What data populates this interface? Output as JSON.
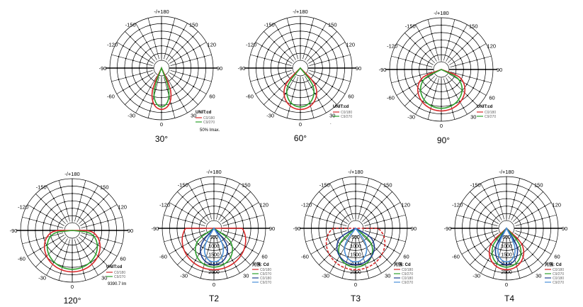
{
  "diagrams": [
    {
      "id": "d30",
      "caption": "30°",
      "angles": {
        "top": "-/+180",
        "m150": "-150",
        "p150": "150",
        "m120": "-120",
        "p120": "120",
        "m90": "-90",
        "p90": "90",
        "m60": "-60",
        "p60": "60",
        "m30": "-30",
        "p30": "30",
        "zero": "0"
      },
      "unit": "UNIT:cd",
      "legend": [
        {
          "label": "C0/180",
          "color": "#d62728"
        },
        {
          "label": "C9/270",
          "color": "#2ca02c"
        }
      ],
      "note": "50% Imax.",
      "curves": [
        {
          "color": "#d62728",
          "half_width_deg": 18,
          "dash": false
        },
        {
          "color": "#2ca02c",
          "half_width_deg": 15,
          "dash": false
        }
      ]
    },
    {
      "id": "d60",
      "caption": "60°",
      "angles": {
        "top": "-/+180",
        "m150": "-150",
        "p150": "150",
        "m120": "-120",
        "p120": "120",
        "m90": "-90",
        "p90": "90",
        "m60": "-60",
        "p60": "60",
        "m30": "-30",
        "p30": "30",
        "zero": "0"
      },
      "unit": "UNIT:cd",
      "legend": [
        {
          "label": "C0/180",
          "color": "#d62728"
        },
        {
          "label": "C9/270",
          "color": "#2ca02c"
        }
      ],
      "note": ".",
      "curves": [
        {
          "color": "#d62728",
          "half_width_deg": 32,
          "dash": false
        },
        {
          "color": "#2ca02c",
          "half_width_deg": 28,
          "dash": false
        }
      ]
    },
    {
      "id": "d90",
      "caption": "90°",
      "angles": {
        "top": "-/+180",
        "m150": "-150",
        "p150": "150",
        "m120": "-120",
        "p120": "120",
        "m90": "-90",
        "p90": "90",
        "m60": "-60",
        "p60": "60",
        "m30": "-30",
        "p30": "30",
        "zero": "0"
      },
      "unit": "UNIT:cd",
      "legend": [
        {
          "label": "C0/180",
          "color": "#d62728"
        },
        {
          "label": "C9/270",
          "color": "#2ca02c"
        }
      ],
      "note": "",
      "curves": [
        {
          "color": "#d62728",
          "half_width_deg": 50,
          "dash": false
        },
        {
          "color": "#2ca02c",
          "half_width_deg": 46,
          "dash": false
        }
      ]
    },
    {
      "id": "d120",
      "caption": "120°",
      "angles": {
        "top": "-/+180",
        "m150": "-150",
        "p150": "150",
        "m120": "-120",
        "p120": "120",
        "m90": "-90",
        "p90": "90",
        "m60": "-60",
        "p60": "60",
        "m30": "-30",
        "p30": "30",
        "zero": "0"
      },
      "unit": "UNIT:cd",
      "legend": [
        {
          "label": "C0/180",
          "color": "#d62728"
        },
        {
          "label": "C9/270",
          "color": "#2ca02c"
        }
      ],
      "note": "9390.7 lm",
      "curves": [
        {
          "color": "#d62728",
          "half_width_deg": 64,
          "dash": false
        },
        {
          "color": "#2ca02c",
          "half_width_deg": 60,
          "dash": false
        }
      ]
    },
    {
      "id": "dT2",
      "caption": "T2",
      "angles": {
        "top": "-/+180",
        "m150": "-150",
        "p150": "150",
        "m120": "-120",
        "p120": "120",
        "m90": "-90",
        "p90": "90",
        "m60": "-60",
        "p60": "60",
        "m30": "-30",
        "p30": "30",
        "zero": "0"
      },
      "unit": "光强: Cd",
      "radial": [
        "500",
        "1000",
        "1500",
        "2000",
        "2500"
      ],
      "legend": [
        {
          "label": "C0/180",
          "color": "#d62728"
        },
        {
          "label": "C9/270",
          "color": "#2ca02c"
        },
        {
          "label": "C0/180",
          "color": "#1f3f8f"
        },
        {
          "label": "C9/270",
          "color": "#4a90d9"
        }
      ],
      "note": "",
      "curves": [
        {
          "color": "#d62728",
          "half_width_deg": 82,
          "dash": false
        },
        {
          "color": "#2ca02c",
          "half_width_deg": 40,
          "dash": false
        },
        {
          "color": "#1f3f8f",
          "half_width_deg": 30,
          "dash": false
        },
        {
          "color": "#4a90d9",
          "half_width_deg": 22,
          "dash": false
        }
      ]
    },
    {
      "id": "dT3",
      "caption": "T3",
      "angles": {
        "top": "-/+180",
        "m150": "-150",
        "p150": "150",
        "m120": "-120",
        "p120": "120",
        "m90": "-90",
        "p90": "90",
        "m60": "-60",
        "p60": "60",
        "m30": "-30",
        "p30": "30",
        "zero": "0"
      },
      "unit": "光强: Cd",
      "radial": [
        "500",
        "1000",
        "1500",
        "2000",
        "2500"
      ],
      "legend": [
        {
          "label": "C0/180",
          "color": "#d62728"
        },
        {
          "label": "C9/270",
          "color": "#2ca02c"
        },
        {
          "label": "C0/180",
          "color": "#1f3f8f"
        },
        {
          "label": "C9/270",
          "color": "#4a90d9"
        }
      ],
      "note": "",
      "curves": [
        {
          "color": "#d62728",
          "half_width_deg": 70,
          "dash": true
        },
        {
          "color": "#2ca02c",
          "half_width_deg": 36,
          "dash": false
        },
        {
          "color": "#1f3f8f",
          "half_width_deg": 44,
          "dash": false
        },
        {
          "color": "#4a90d9",
          "half_width_deg": 26,
          "dash": false
        }
      ]
    },
    {
      "id": "dT4",
      "caption": "T4",
      "angles": {
        "top": "-/+180",
        "m150": "-150",
        "p150": "150",
        "m120": "-120",
        "p120": "120",
        "m90": "-90",
        "p90": "90",
        "m60": "-60",
        "p60": "60",
        "m30": "-30",
        "p30": "30",
        "zero": "0"
      },
      "unit": "光强: Cd",
      "radial": [
        "500",
        "1000",
        "1500",
        "2000",
        "2500"
      ],
      "legend": [
        {
          "label": "C0/180",
          "color": "#d62728"
        },
        {
          "label": "C9/270",
          "color": "#2ca02c"
        },
        {
          "label": "C0/180",
          "color": "#1f3f8f"
        },
        {
          "label": "C9/270",
          "color": "#4a90d9"
        }
      ],
      "note": "",
      "curves": [
        {
          "color": "#d62728",
          "half_width_deg": 34,
          "dash": false
        },
        {
          "color": "#2ca02c",
          "half_width_deg": 30,
          "dash": false
        },
        {
          "color": "#1f3f8f",
          "half_width_deg": 24,
          "dash": false
        },
        {
          "color": "#4a90d9",
          "half_width_deg": 20,
          "dash": false
        }
      ]
    }
  ]
}
